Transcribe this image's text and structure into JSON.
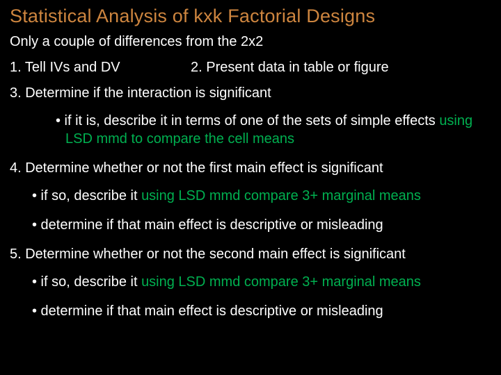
{
  "colors": {
    "background": "#000000",
    "title": "#cd853f",
    "body_text": "#ffffff",
    "accent": "#00b050"
  },
  "typography": {
    "title_fontsize": 27,
    "body_fontsize": 20,
    "font_family": "Arial"
  },
  "title": "Statistical Analysis of kxk Factorial Designs",
  "subtitle": "Only a couple of differences from the 2x2",
  "row12": {
    "item1": "1.  Tell IVs and DV",
    "item2": "2.  Present data in table or figure"
  },
  "item3": {
    "text": "3.  Determine if the interaction is significant",
    "bullet_a_pre": "• if it is, describe it in terms of one of the sets of simple effects ",
    "bullet_a_accent": "using LSD mmd to compare the cell means"
  },
  "item4": {
    "text": "4.  Determine whether or not the first main effect is significant",
    "bullet_a_pre": "• if so, describe it ",
    "bullet_a_accent": "using LSD mmd compare 3+ marginal means",
    "bullet_b": "• determine if that main effect is descriptive or misleading"
  },
  "item5": {
    "text": "5.  Determine whether or not the second main effect is significant",
    "bullet_a_pre": "• if so, describe it ",
    "bullet_a_accent": "using LSD mmd compare 3+ marginal means",
    "bullet_b": "• determine if that main effect is descriptive or misleading"
  }
}
